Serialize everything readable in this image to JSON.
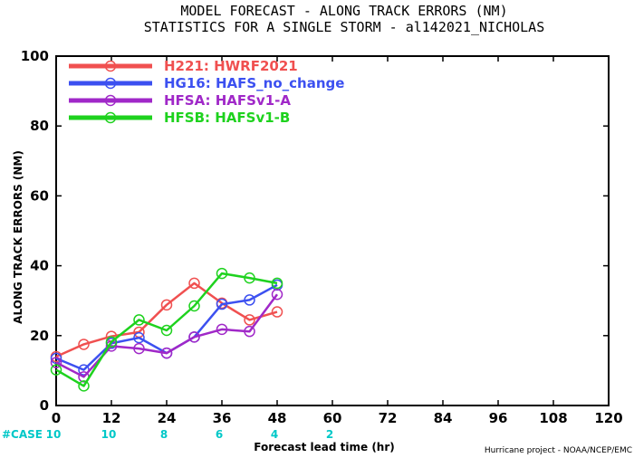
{
  "chart_data": {
    "type": "line",
    "title_line1": "MODEL FORECAST - ALONG TRACK ERRORS (NM)",
    "title_line2": "STATISTICS FOR A SINGLE STORM - al142021_NICHOLAS",
    "xlabel": "Forecast lead time (hr)",
    "ylabel": "ALONG TRACK ERRORS (NM)",
    "xlim": [
      0,
      120
    ],
    "ylim": [
      0,
      100
    ],
    "xticks": [
      0,
      12,
      24,
      36,
      48,
      60,
      72,
      84,
      96,
      108,
      120
    ],
    "yticks": [
      0,
      20,
      40,
      60,
      80,
      100
    ],
    "grid": false,
    "legend_position": "top-left",
    "case_label": "#CASE",
    "case_counts": [
      {
        "x": 0,
        "count": "10"
      },
      {
        "x": 12,
        "count": "10"
      },
      {
        "x": 24,
        "count": "8"
      },
      {
        "x": 36,
        "count": "6"
      },
      {
        "x": 48,
        "count": "4"
      },
      {
        "x": 60,
        "count": "2"
      }
    ],
    "credit": "Hurricane project - NOAA/NCEP/EMC",
    "series": [
      {
        "name": "H221: HWRF2021",
        "color": "#f05050",
        "x": [
          0,
          6,
          12,
          18,
          24,
          30,
          36,
          42,
          48
        ],
        "y": [
          14.0,
          17.5,
          19.8,
          21.0,
          28.8,
          35.0,
          29.3,
          24.5,
          26.8
        ]
      },
      {
        "name": "HG16: HAFS_no_change",
        "color": "#3c50f0",
        "x": [
          0,
          6,
          12,
          18,
          24,
          30,
          36,
          42,
          48
        ],
        "y": [
          13.5,
          10.2,
          17.8,
          19.4,
          15.0,
          19.6,
          29.0,
          30.2,
          34.5
        ]
      },
      {
        "name": "HFSA: HAFSv1-A",
        "color": "#a028c8",
        "x": [
          0,
          6,
          12,
          18,
          24,
          30,
          36,
          42,
          48
        ],
        "y": [
          12.3,
          8.2,
          17.0,
          16.3,
          15.0,
          19.6,
          21.8,
          21.2,
          31.8
        ]
      },
      {
        "name": "HFSB: HAFSv1-B",
        "color": "#1ed21e",
        "x": [
          0,
          6,
          12,
          18,
          24,
          30,
          36,
          42,
          48
        ],
        "y": [
          10.2,
          5.6,
          18.2,
          24.5,
          21.5,
          28.5,
          37.8,
          36.5,
          35.0
        ]
      }
    ]
  }
}
